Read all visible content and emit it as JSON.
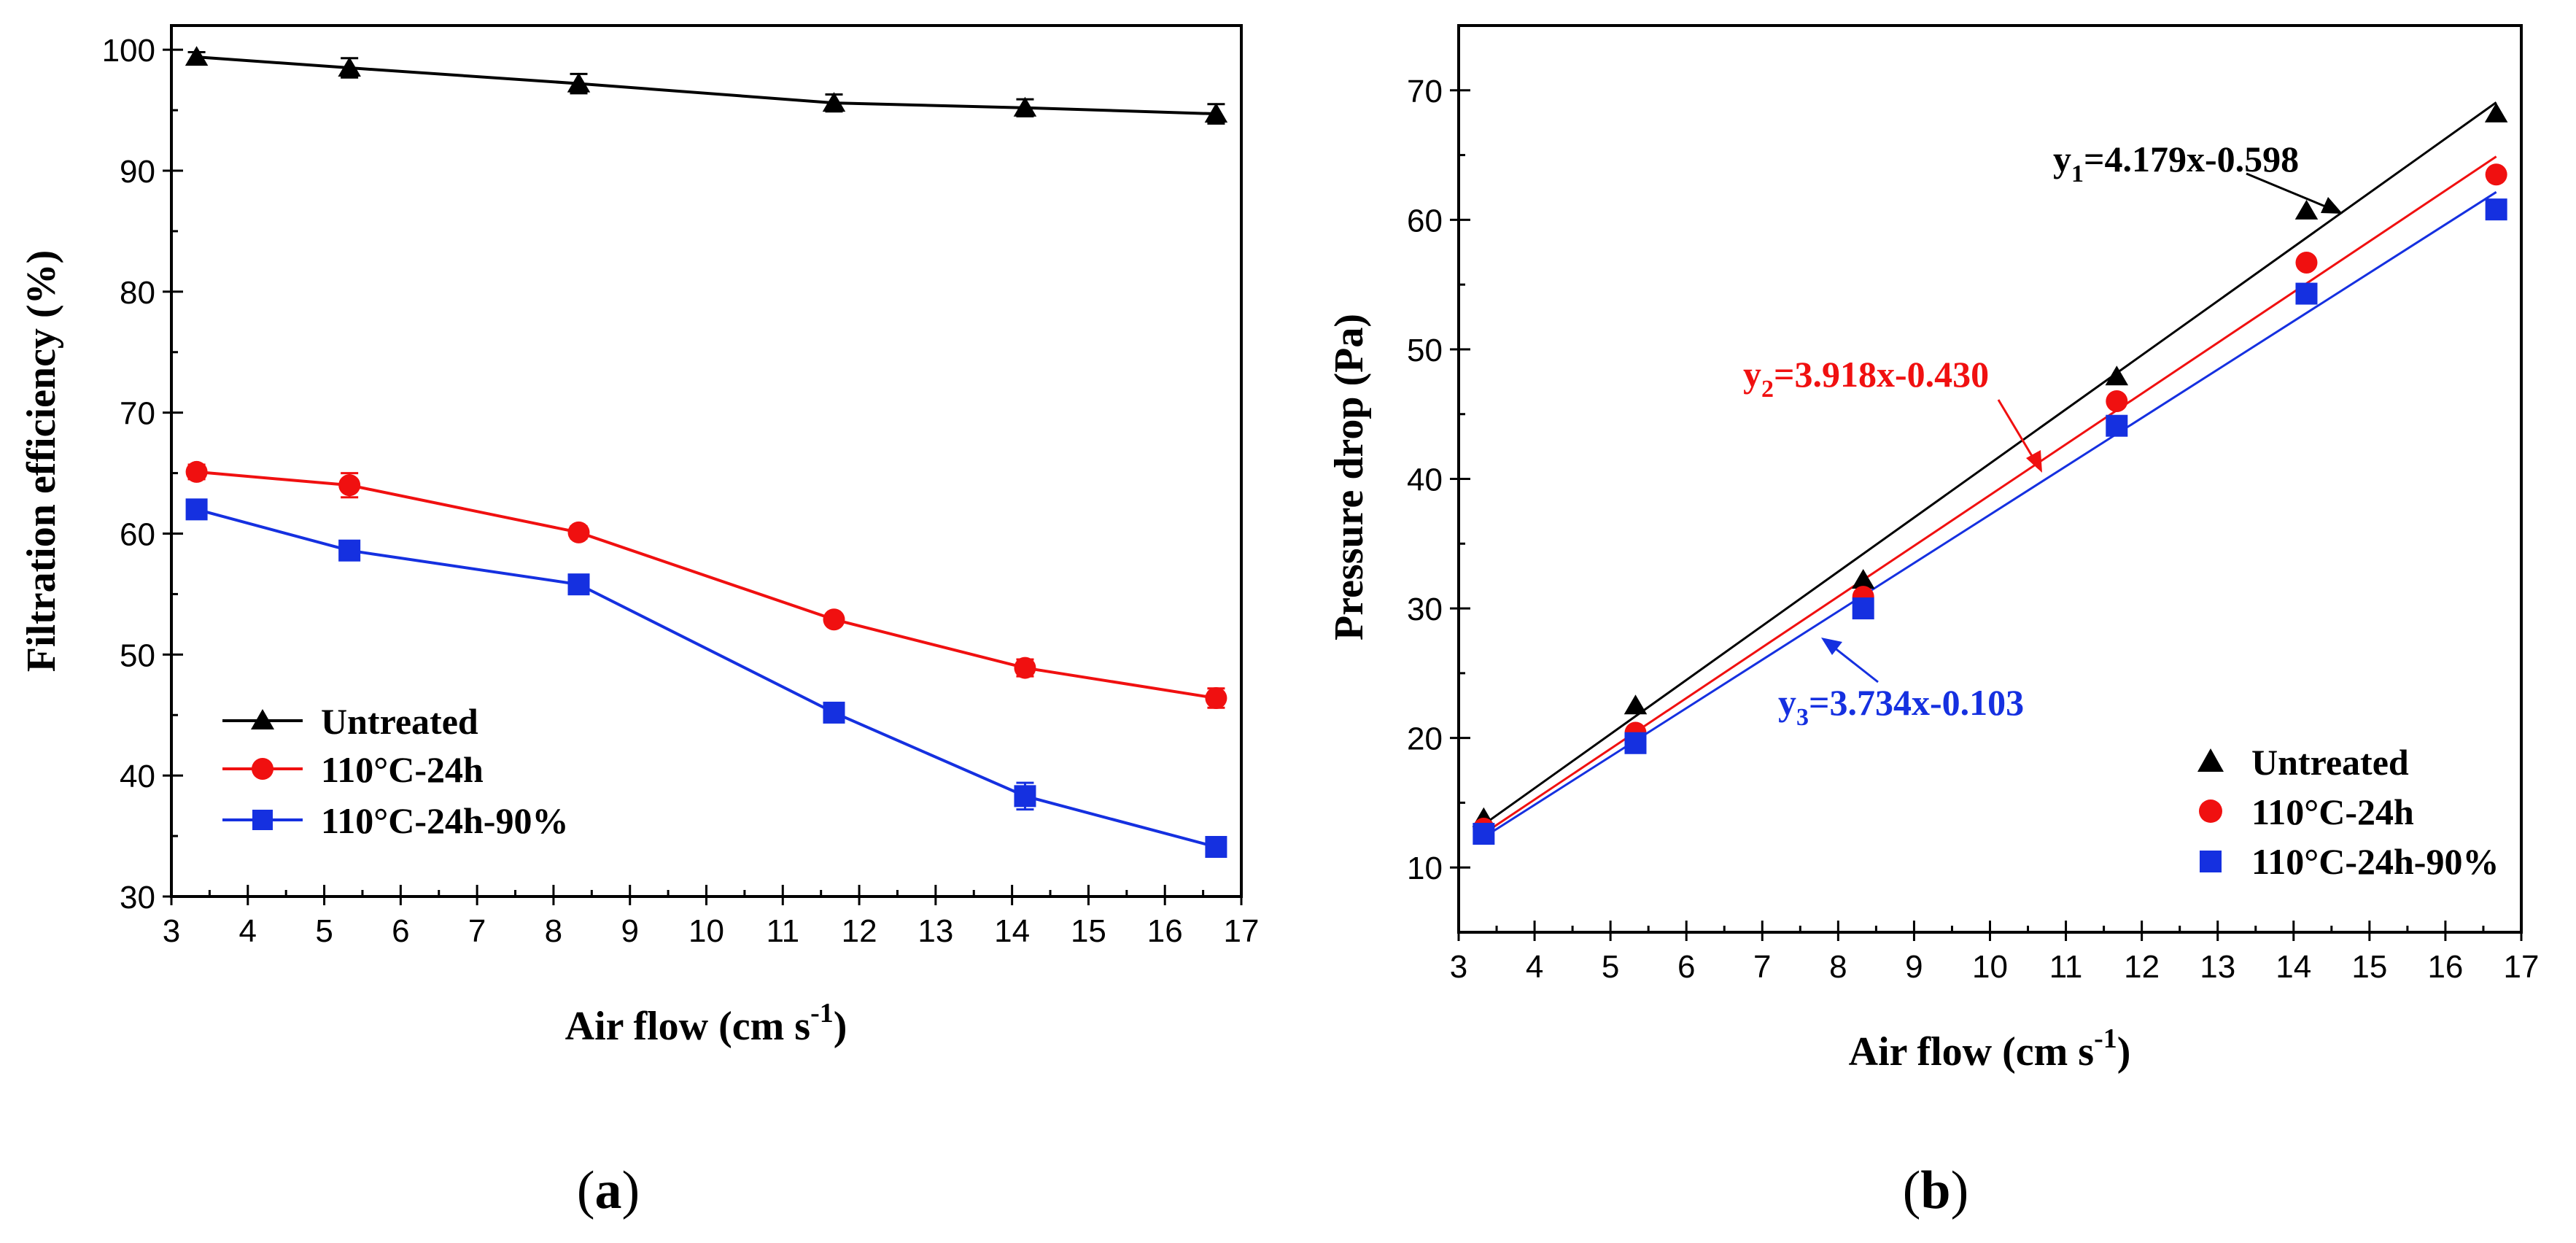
{
  "colors": {
    "untreated": "#000000",
    "h24": "#f01010",
    "h24_90": "#1530e0"
  },
  "chart_data": [
    {
      "type": "line",
      "panel_label": "a",
      "xlabel": "Air flow (cm s",
      "xlabel_sup": "-1",
      "xlabel_end": ")",
      "ylabel": "Filtration efficiency (%)",
      "xlim": [
        3,
        17
      ],
      "ylim": [
        30,
        102
      ],
      "xticks": [
        "3",
        "4",
        "5",
        "6",
        "7",
        "8",
        "9",
        "10",
        "11",
        "12",
        "13",
        "14",
        "15",
        "16",
        "17"
      ],
      "yticks": [
        "30",
        "40",
        "50",
        "60",
        "70",
        "80",
        "90",
        "100"
      ],
      "x": [
        3.33,
        5.33,
        8.33,
        11.67,
        14.17,
        16.67
      ],
      "series": [
        {
          "name": "Untreated",
          "marker": "triangle",
          "color": "#000000",
          "values": [
            99.4,
            98.5,
            97.2,
            95.6,
            95.2,
            94.7
          ],
          "errors": [
            0.4,
            0.8,
            0.8,
            0.7,
            0.7,
            0.8
          ]
        },
        {
          "name": "110°C-24h",
          "marker": "circle",
          "color": "#f01010",
          "values": [
            65.1,
            64.0,
            60.1,
            52.9,
            48.9,
            46.4
          ],
          "errors": [
            0.6,
            1.0,
            0.5,
            0.4,
            0.7,
            0.8
          ]
        },
        {
          "name": "110°C-24h-90%",
          "marker": "square",
          "color": "#1530e0",
          "values": [
            62.0,
            58.6,
            55.8,
            45.2,
            38.3,
            34.1
          ],
          "errors": [
            0.4,
            0.4,
            0.4,
            0.4,
            1.1,
            0.8
          ]
        }
      ],
      "legend": "bottom-left"
    },
    {
      "type": "scatter",
      "panel_label": "b",
      "xlabel": "Air flow (cm s",
      "xlabel_sup": "-1",
      "xlabel_end": ")",
      "ylabel": "Pressure drop (Pa)",
      "xlim": [
        3,
        17
      ],
      "ylim": [
        5,
        75
      ],
      "xticks": [
        "3",
        "4",
        "5",
        "6",
        "7",
        "8",
        "9",
        "10",
        "11",
        "12",
        "13",
        "14",
        "15",
        "16",
        "17"
      ],
      "yticks": [
        "10",
        "20",
        "30",
        "40",
        "50",
        "60",
        "70"
      ],
      "x": [
        3.33,
        5.33,
        8.33,
        11.67,
        14.17,
        16.67
      ],
      "series": [
        {
          "name": "Untreated",
          "marker": "triangle",
          "color": "#000000",
          "values": [
            13.8,
            22.5,
            32.2,
            47.9,
            60.7,
            68.2
          ],
          "fit": {
            "slope": 4.179,
            "intercept": -0.598
          }
        },
        {
          "name": "110°C-24h",
          "marker": "circle",
          "color": "#f01010",
          "values": [
            13.0,
            20.4,
            30.9,
            46.0,
            56.7,
            63.5
          ],
          "fit": {
            "slope": 3.918,
            "intercept": -0.43
          }
        },
        {
          "name": "110°C-24h-90%",
          "marker": "square",
          "color": "#1530e0",
          "values": [
            12.6,
            19.6,
            30.0,
            44.1,
            54.3,
            60.8
          ],
          "fit": {
            "slope": 3.734,
            "intercept": -0.103
          }
        }
      ],
      "annotations": [
        {
          "sym": "y",
          "sub": "1",
          "eq": "=4.179x-0.598",
          "color": "#000000"
        },
        {
          "sym": "y",
          "sub": "2",
          "eq": "=3.918x-0.430",
          "color": "#f01010"
        },
        {
          "sym": "y",
          "sub": "3",
          "eq": "=3.734x-0.103",
          "color": "#1530e0"
        }
      ],
      "legend": "bottom-right"
    }
  ]
}
